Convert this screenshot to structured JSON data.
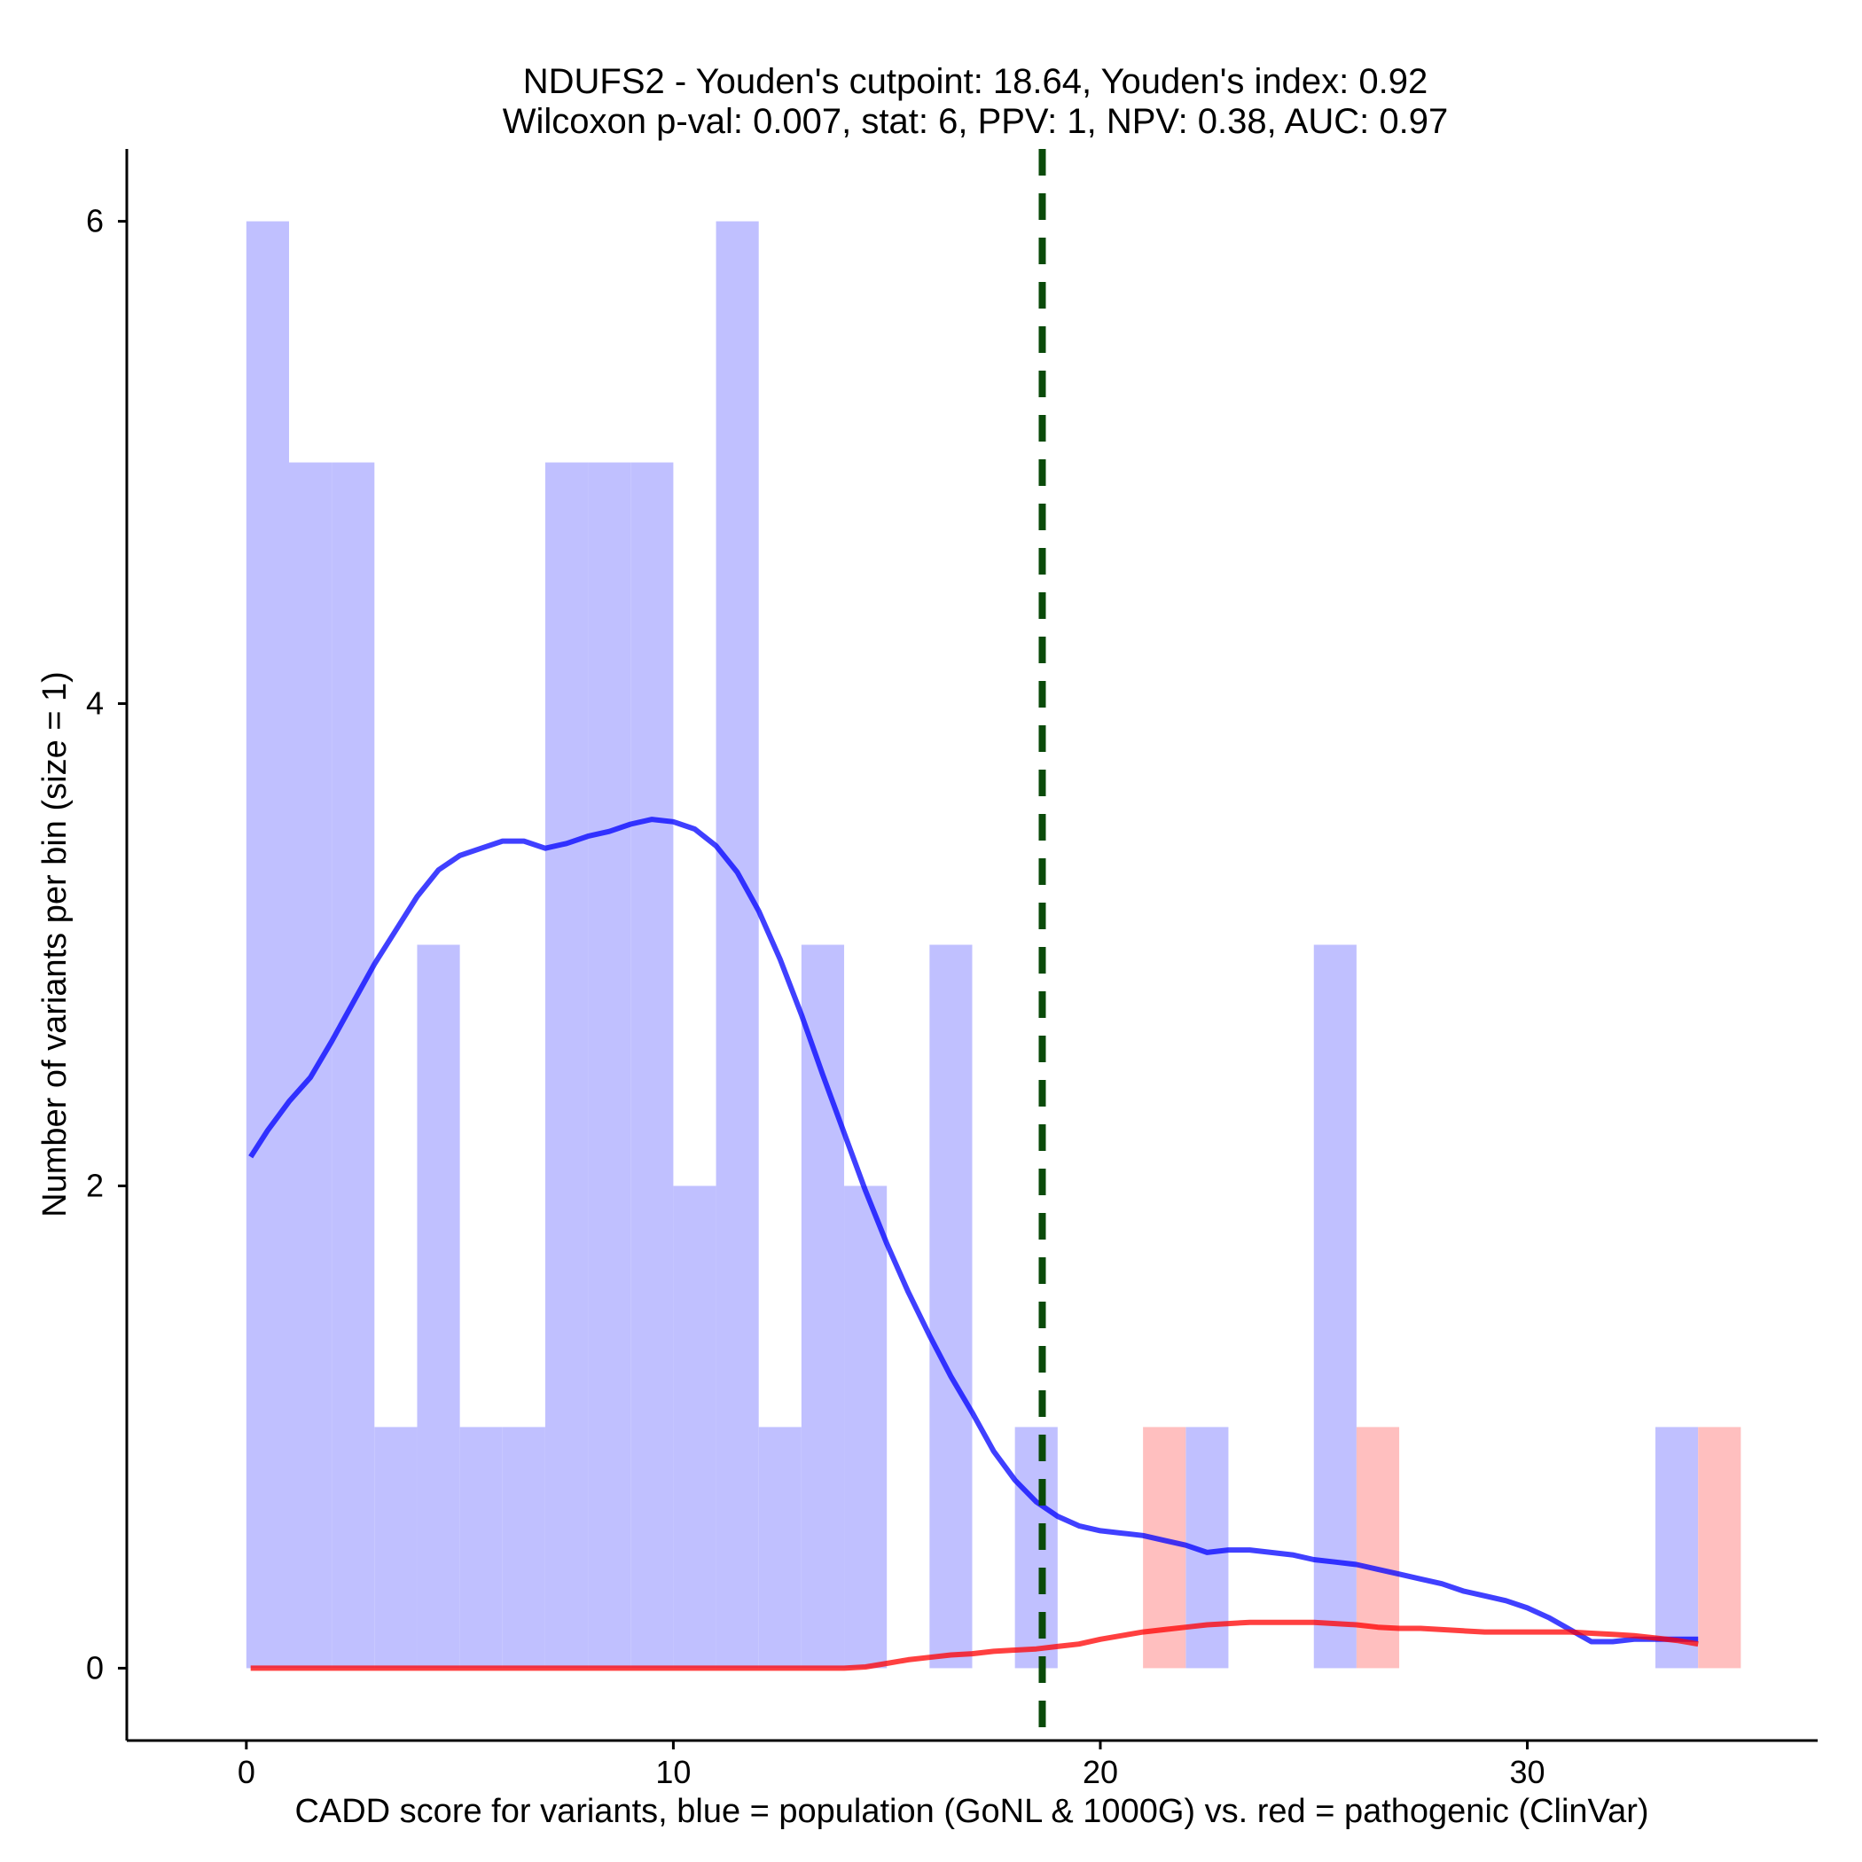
{
  "chart_data": {
    "type": "histogram",
    "title": "NDUFS2 - Youden's cutpoint: 18.64, Youden's index: 0.92",
    "subtitle": "Wilcoxon p-val: 0.007, stat: 6, PPV: 1, NPV: 0.38, AUC: 0.97",
    "xlabel": "CADD score for variants, blue = population (GoNL & 1000G) vs. red = pathogenic (ClinVar)",
    "ylabel": "Number of variants per bin (size = 1)",
    "xlim": [
      -2.8,
      36.8
    ],
    "ylim": [
      -0.3,
      6.3
    ],
    "xticks": [
      0,
      10,
      20,
      30
    ],
    "yticks": [
      0,
      2,
      4,
      6
    ],
    "bin_size": 1,
    "cutpoint": 18.64,
    "series": [
      {
        "name": "population (GoNL & 1000G)",
        "color": "#0000ff",
        "fill": "#c0c0ff",
        "bins": [
          {
            "x0": 0,
            "x1": 1,
            "count": 6
          },
          {
            "x0": 1,
            "x1": 2,
            "count": 5
          },
          {
            "x0": 2,
            "x1": 3,
            "count": 5
          },
          {
            "x0": 3,
            "x1": 4,
            "count": 1
          },
          {
            "x0": 4,
            "x1": 5,
            "count": 3
          },
          {
            "x0": 5,
            "x1": 6,
            "count": 1
          },
          {
            "x0": 6,
            "x1": 7,
            "count": 1
          },
          {
            "x0": 7,
            "x1": 8,
            "count": 5
          },
          {
            "x0": 8,
            "x1": 9,
            "count": 5
          },
          {
            "x0": 9,
            "x1": 10,
            "count": 5
          },
          {
            "x0": 10,
            "x1": 11,
            "count": 2
          },
          {
            "x0": 11,
            "x1": 12,
            "count": 6
          },
          {
            "x0": 12,
            "x1": 13,
            "count": 1
          },
          {
            "x0": 13,
            "x1": 14,
            "count": 3
          },
          {
            "x0": 14,
            "x1": 15,
            "count": 2
          },
          {
            "x0": 16,
            "x1": 17,
            "count": 3
          },
          {
            "x0": 18,
            "x1": 19,
            "count": 1
          },
          {
            "x0": 22,
            "x1": 23,
            "count": 1
          },
          {
            "x0": 25,
            "x1": 26,
            "count": 3
          },
          {
            "x0": 33,
            "x1": 34,
            "count": 1
          }
        ],
        "density": [
          [
            0.1,
            2.12
          ],
          [
            0.5,
            2.23
          ],
          [
            1.0,
            2.35
          ],
          [
            1.5,
            2.45
          ],
          [
            2.0,
            2.6
          ],
          [
            2.5,
            2.76
          ],
          [
            3.0,
            2.92
          ],
          [
            3.5,
            3.06
          ],
          [
            4.0,
            3.2
          ],
          [
            4.5,
            3.31
          ],
          [
            5.0,
            3.37
          ],
          [
            5.5,
            3.4
          ],
          [
            6.0,
            3.43
          ],
          [
            6.5,
            3.43
          ],
          [
            7.0,
            3.4
          ],
          [
            7.5,
            3.42
          ],
          [
            8.0,
            3.45
          ],
          [
            8.5,
            3.47
          ],
          [
            9.0,
            3.5
          ],
          [
            9.5,
            3.52
          ],
          [
            10.0,
            3.51
          ],
          [
            10.5,
            3.48
          ],
          [
            11.0,
            3.41
          ],
          [
            11.5,
            3.3
          ],
          [
            12.0,
            3.14
          ],
          [
            12.5,
            2.94
          ],
          [
            13.0,
            2.71
          ],
          [
            13.5,
            2.46
          ],
          [
            14.0,
            2.22
          ],
          [
            14.5,
            1.98
          ],
          [
            15.0,
            1.76
          ],
          [
            15.5,
            1.56
          ],
          [
            16.0,
            1.38
          ],
          [
            16.5,
            1.21
          ],
          [
            17.0,
            1.06
          ],
          [
            17.5,
            0.9
          ],
          [
            18.0,
            0.78
          ],
          [
            18.5,
            0.69
          ],
          [
            19.0,
            0.63
          ],
          [
            19.5,
            0.59
          ],
          [
            20.0,
            0.57
          ],
          [
            20.5,
            0.56
          ],
          [
            21.0,
            0.55
          ],
          [
            21.5,
            0.53
          ],
          [
            22.0,
            0.51
          ],
          [
            22.5,
            0.48
          ],
          [
            23.0,
            0.49
          ],
          [
            23.5,
            0.49
          ],
          [
            24.0,
            0.48
          ],
          [
            24.5,
            0.47
          ],
          [
            25.0,
            0.45
          ],
          [
            25.5,
            0.44
          ],
          [
            26.0,
            0.43
          ],
          [
            26.5,
            0.41
          ],
          [
            27.0,
            0.39
          ],
          [
            27.5,
            0.37
          ],
          [
            28.0,
            0.35
          ],
          [
            28.5,
            0.32
          ],
          [
            29.0,
            0.3
          ],
          [
            29.5,
            0.28
          ],
          [
            30.0,
            0.25
          ],
          [
            30.5,
            0.21
          ],
          [
            31.0,
            0.16
          ],
          [
            31.5,
            0.11
          ],
          [
            32.0,
            0.11
          ],
          [
            32.5,
            0.12
          ],
          [
            33.0,
            0.12
          ],
          [
            33.5,
            0.12
          ],
          [
            34.0,
            0.12
          ]
        ]
      },
      {
        "name": "pathogenic (ClinVar)",
        "color": "#ff0000",
        "fill": "#ffbfbf",
        "bins": [
          {
            "x0": 21,
            "x1": 22,
            "count": 1
          },
          {
            "x0": 26,
            "x1": 27,
            "count": 1
          },
          {
            "x0": 34,
            "x1": 35,
            "count": 1
          }
        ],
        "density": [
          [
            0.1,
            0.0
          ],
          [
            2.0,
            0.0
          ],
          [
            4.0,
            0.0
          ],
          [
            6.0,
            0.0
          ],
          [
            8.0,
            0.0
          ],
          [
            10.0,
            0.0
          ],
          [
            12.0,
            0.0
          ],
          [
            13.0,
            0.0
          ],
          [
            14.0,
            0.0
          ],
          [
            14.5,
            0.005
          ],
          [
            15.0,
            0.02
          ],
          [
            15.5,
            0.035
          ],
          [
            16.0,
            0.045
          ],
          [
            16.5,
            0.055
          ],
          [
            17.0,
            0.06
          ],
          [
            17.5,
            0.07
          ],
          [
            18.0,
            0.075
          ],
          [
            18.5,
            0.08
          ],
          [
            19.0,
            0.09
          ],
          [
            19.5,
            0.1
          ],
          [
            20.0,
            0.12
          ],
          [
            20.5,
            0.135
          ],
          [
            21.0,
            0.15
          ],
          [
            21.5,
            0.16
          ],
          [
            22.0,
            0.17
          ],
          [
            22.5,
            0.18
          ],
          [
            23.0,
            0.185
          ],
          [
            23.5,
            0.19
          ],
          [
            24.0,
            0.19
          ],
          [
            24.5,
            0.19
          ],
          [
            25.0,
            0.19
          ],
          [
            25.5,
            0.185
          ],
          [
            26.0,
            0.18
          ],
          [
            26.5,
            0.17
          ],
          [
            27.0,
            0.165
          ],
          [
            27.5,
            0.165
          ],
          [
            28.0,
            0.16
          ],
          [
            28.5,
            0.155
          ],
          [
            29.0,
            0.15
          ],
          [
            29.5,
            0.15
          ],
          [
            30.0,
            0.15
          ],
          [
            30.5,
            0.15
          ],
          [
            31.0,
            0.15
          ],
          [
            31.5,
            0.145
          ],
          [
            32.0,
            0.14
          ],
          [
            32.5,
            0.135
          ],
          [
            33.0,
            0.125
          ],
          [
            33.5,
            0.115
          ],
          [
            34.0,
            0.1
          ]
        ]
      }
    ]
  }
}
